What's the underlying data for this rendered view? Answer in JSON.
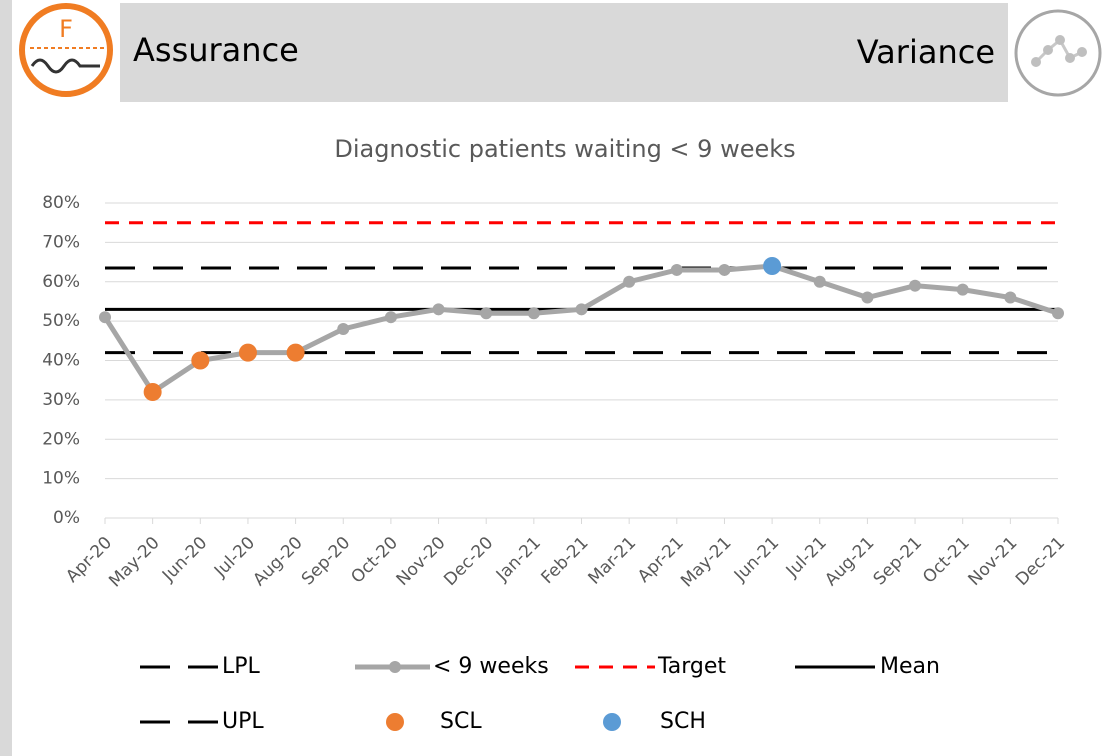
{
  "header": {
    "icon_letter": "F",
    "left_title": "Assurance",
    "right_title": "Variance"
  },
  "chart_data": {
    "type": "line",
    "title": "Diagnostic patients waiting < 9 weeks",
    "categories": [
      "Apr-20",
      "May-20",
      "Jun-20",
      "Jul-20",
      "Aug-20",
      "Sep-20",
      "Oct-20",
      "Nov-20",
      "Dec-20",
      "Jan-21",
      "Feb-21",
      "Mar-21",
      "Apr-21",
      "May-21",
      "Jun-21",
      "Jul-21",
      "Aug-21",
      "Sep-21",
      "Oct-21",
      "Nov-21",
      "Dec-21"
    ],
    "series": [
      {
        "name": "< 9 weeks",
        "color": "#a6a6a6",
        "values": [
          51,
          32,
          40,
          42,
          42,
          48,
          51,
          53,
          52,
          52,
          53,
          60,
          63,
          63,
          64,
          60,
          56,
          59,
          58,
          56,
          52
        ]
      }
    ],
    "markers": [
      {
        "name": "SCL",
        "color": "#ed7d31",
        "values": [
          null,
          32,
          40,
          42,
          42,
          null,
          null,
          null,
          null,
          null,
          null,
          null,
          null,
          null,
          null,
          null,
          null,
          null,
          null,
          null,
          null
        ]
      },
      {
        "name": "SCH",
        "color": "#5b9bd5",
        "values": [
          null,
          null,
          null,
          null,
          null,
          null,
          null,
          null,
          null,
          null,
          null,
          null,
          null,
          null,
          64,
          null,
          null,
          null,
          null,
          null,
          null
        ]
      }
    ],
    "reference_lines": [
      {
        "name": "LPL",
        "value": 42,
        "color": "#000000",
        "dashed": true
      },
      {
        "name": "Target",
        "value": 75,
        "color": "#ff0000",
        "dashed": true
      },
      {
        "name": "Mean",
        "value": 53,
        "color": "#000000",
        "dashed": false
      },
      {
        "name": "UPL",
        "value": 63.5,
        "color": "#000000",
        "dashed": true
      }
    ],
    "ylim": [
      0,
      80
    ],
    "yticks": [
      {
        "value": 0,
        "label": "0%"
      },
      {
        "value": 10,
        "label": "10%"
      },
      {
        "value": 20,
        "label": "20%"
      },
      {
        "value": 30,
        "label": "30%"
      },
      {
        "value": 40,
        "label": "40%"
      },
      {
        "value": 50,
        "label": "50%"
      },
      {
        "value": 60,
        "label": "60%"
      },
      {
        "value": 70,
        "label": "70%"
      },
      {
        "value": 80,
        "label": "80%"
      }
    ],
    "grid": true
  }
}
